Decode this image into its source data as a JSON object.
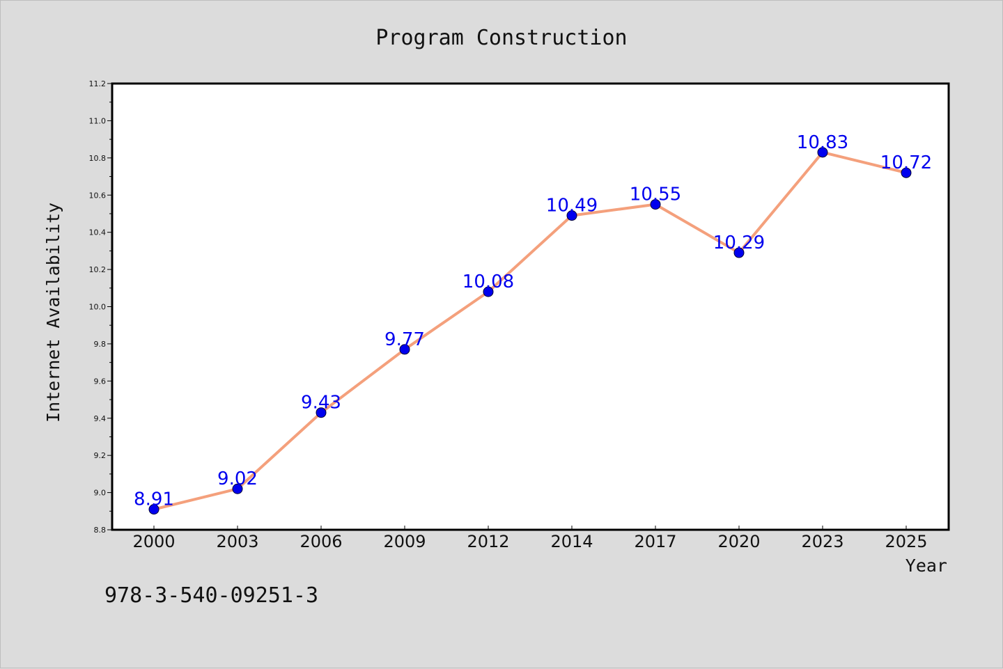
{
  "chart_data": {
    "type": "line",
    "title": "Program Construction",
    "xlabel": "Year",
    "ylabel": "Internet Availability",
    "categories": [
      "2000",
      "2003",
      "2006",
      "2009",
      "2012",
      "2014",
      "2017",
      "2020",
      "2023",
      "2025"
    ],
    "series": [
      {
        "values": [
          8.91,
          9.02,
          9.43,
          9.77,
          10.08,
          10.49,
          10.55,
          10.29,
          10.83,
          10.72
        ],
        "labels": [
          "8.91",
          "9.02",
          "9.43",
          "9.77",
          "10.08",
          "10.49",
          "10.55",
          "10.29",
          "10.83",
          "10.72"
        ],
        "line_color": "#f4a07c",
        "marker_color": "#0000ee",
        "label_color": "#0000ee"
      }
    ],
    "ylim": [
      8.8,
      11.2
    ],
    "yticks": [
      "8.8",
      "9.0",
      "9.2",
      "9.4",
      "9.6",
      "9.8",
      "10.0",
      "10.2",
      "10.4",
      "10.6",
      "10.8",
      "11.0",
      "11.2"
    ],
    "grid": false,
    "legend": "none"
  },
  "footer_text": "978-3-540-09251-3",
  "colors": {
    "background": "#dcdcdc",
    "plot_background": "#ffffff"
  }
}
